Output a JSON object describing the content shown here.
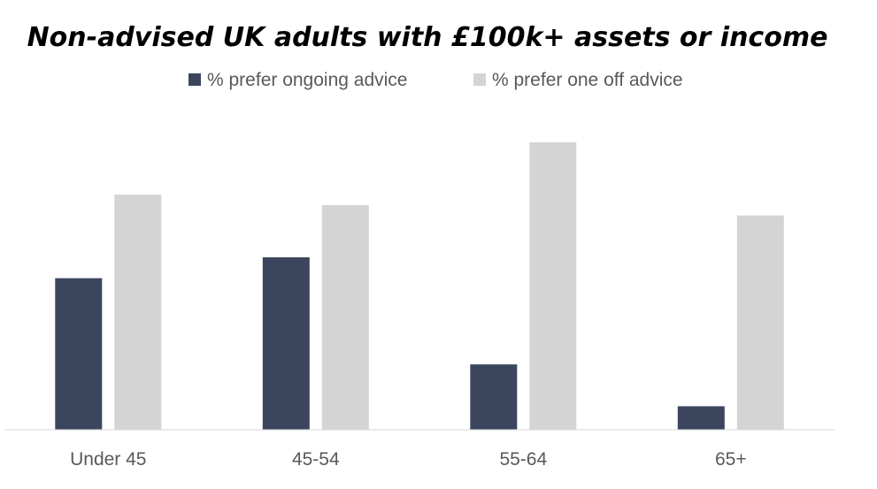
{
  "chart_data": {
    "type": "bar",
    "title": "Non-advised UK adults with £100k+ assets or income",
    "xlabel": "",
    "ylabel": "",
    "categories": [
      "Under 45",
      "45-54",
      "55-64",
      "65+"
    ],
    "series": [
      {
        "name": "% prefer ongoing advice",
        "values": [
          29,
          33,
          12.5,
          4.5
        ]
      },
      {
        "name": "% prefer one off advice",
        "values": [
          45,
          43,
          55,
          41
        ]
      }
    ],
    "ylim": [
      0,
      55
    ],
    "grid": false,
    "legend_position": "top",
    "colors": {
      "ongoing": "#3b465e",
      "one_off": "#d4d4d4",
      "axis": "#d9d9d9",
      "text": "#595959"
    }
  }
}
